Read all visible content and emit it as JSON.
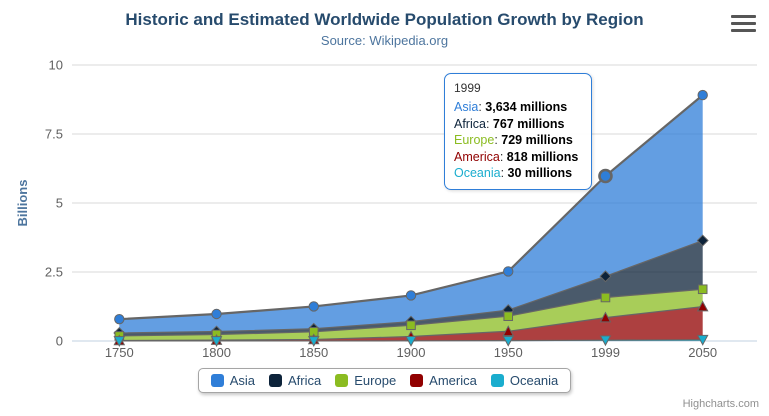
{
  "chart": {
    "title": "Historic and Estimated Worldwide Population Growth by Region",
    "subtitle": "Source: Wikipedia.org",
    "credits": "Highcharts.com"
  },
  "chart_data": {
    "type": "area",
    "stacking": "normal",
    "title": "Historic and Estimated Worldwide Population Growth by Region",
    "subtitle": "Source: Wikipedia.org",
    "xlabel": "",
    "ylabel": "Billions",
    "categories": [
      "1750",
      "1800",
      "1850",
      "1900",
      "1950",
      "1999",
      "2050"
    ],
    "yticks": [
      0,
      2.5,
      5,
      7.5,
      10
    ],
    "ylim": [
      0,
      10
    ],
    "values_unit": "millions",
    "grid": true,
    "legend_position": "bottom",
    "line_color": "#666666",
    "fill_opacity": 0.75,
    "axis_line_color": "#C0D0E0",
    "grid_line_color": "#D8D8D8",
    "axis_label_color": "#606060",
    "series": [
      {
        "name": "Asia",
        "color": "#2f7ed8",
        "marker": "circle",
        "data": [
          502,
          635,
          809,
          947,
          1402,
          3634,
          5268
        ]
      },
      {
        "name": "Africa",
        "color": "#0d233a",
        "marker": "diamond",
        "data": [
          106,
          107,
          111,
          133,
          221,
          767,
          1766
        ]
      },
      {
        "name": "Europe",
        "color": "#8bbc21",
        "marker": "square",
        "data": [
          163,
          203,
          276,
          408,
          547,
          729,
          628
        ]
      },
      {
        "name": "America",
        "color": "#910000",
        "marker": "triangle",
        "data": [
          18,
          31,
          54,
          156,
          339,
          818,
          1201
        ]
      },
      {
        "name": "Oceania",
        "color": "#1aadce",
        "marker": "triangle-down",
        "data": [
          2,
          2,
          2,
          6,
          13,
          30,
          46
        ]
      }
    ],
    "hover_point": {
      "series": "Asia",
      "category": "1999"
    }
  },
  "tooltip": {
    "header": "1999",
    "separator": ": ",
    "rows": [
      {
        "name": "Asia",
        "color": "#2f7ed8",
        "value": "3,634 millions"
      },
      {
        "name": "Africa",
        "color": "#0d233a",
        "value": "767 millions"
      },
      {
        "name": "Europe",
        "color": "#8bbc21",
        "value": "729 millions"
      },
      {
        "name": "America",
        "color": "#910000",
        "value": "818 millions"
      },
      {
        "name": "Oceania",
        "color": "#1aadce",
        "value": "30 millions"
      }
    ]
  },
  "legend": {
    "items": [
      {
        "label": "Asia",
        "color": "#2f7ed8"
      },
      {
        "label": "Africa",
        "color": "#0d233a"
      },
      {
        "label": "Europe",
        "color": "#8bbc21"
      },
      {
        "label": "America",
        "color": "#910000"
      },
      {
        "label": "Oceania",
        "color": "#1aadce"
      }
    ]
  }
}
